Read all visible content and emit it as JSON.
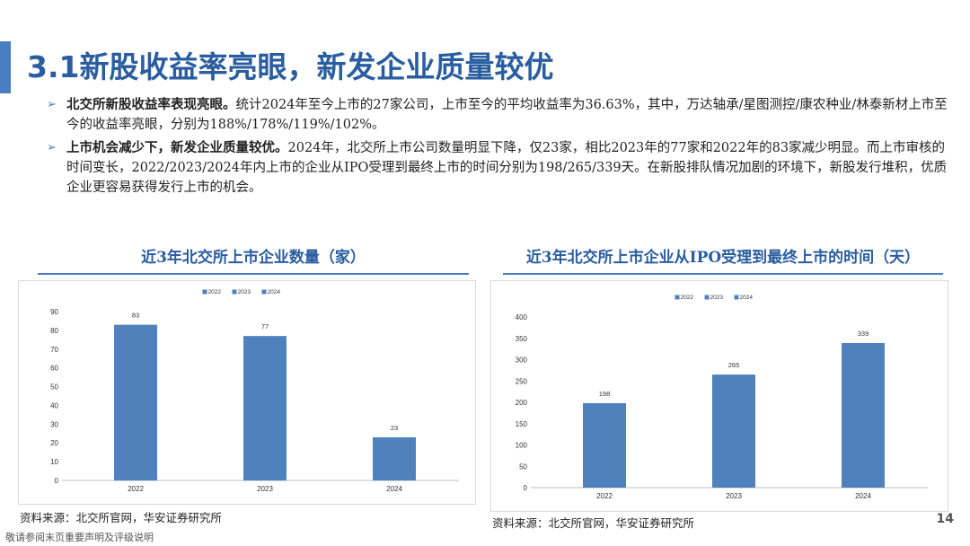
{
  "title": "3.1新股收益率亮眼，新发企业质量较优",
  "bullets": [
    {
      "lead": "北交所新股收益率表现亮眼。",
      "text": "统计2024年至今上市的27家公司，上市至今的平均收益率为36.63%，其中，万达轴承/星图测控/康农种业/林泰新材上市至今的收益率亮眼，分别为188%/178%/119%/102%。"
    },
    {
      "lead": "上市机会减少下，新发企业质量较优。",
      "text": "2024年，北交所上市公司数量明显下降，仅23家，相比2023年的77家和2022年的83家减少明显。而上市审核的时间变长，2022/2023/2024年内上市的企业从IPO受理到最终上市的时间分别为198/265/339天。在新股排队情况加剧的环境下，新股发行堆积，优质企业更容易获得发行上市的机会。"
    }
  ],
  "chart_data": [
    {
      "type": "bar",
      "title": "近3年北交所上市企业数量（家）",
      "categories": [
        "2022",
        "2023",
        "2024"
      ],
      "legend": [
        "2022",
        "2023",
        "2024"
      ],
      "values": [
        83,
        77,
        23
      ],
      "ylim": [
        0,
        90
      ],
      "yticks": [
        "0",
        "10",
        "20",
        "30",
        "40",
        "50",
        "60",
        "70",
        "80",
        "90"
      ],
      "color": "#4f81bd",
      "legend_position": "top-center",
      "grid": false
    },
    {
      "type": "bar",
      "title": "近3年北交所上市企业从IPO受理到最终上市的时间（天）",
      "categories": [
        "2022",
        "2023",
        "2024"
      ],
      "legend": [
        "2022",
        "2023",
        "2024"
      ],
      "values": [
        198,
        265,
        339
      ],
      "ylim": [
        0,
        400
      ],
      "yticks": [
        "0",
        "50",
        "100",
        "150",
        "200",
        "250",
        "300",
        "350",
        "400"
      ],
      "color": "#4f81bd",
      "legend_position": "top-center",
      "grid": false
    }
  ],
  "source1": "资料来源：北交所官网，华安证券研究所",
  "source2": "资料来源：北交所官网，华安证券研究所",
  "page_number": "14",
  "footer": "敬请参阅末页重要声明及评级说明"
}
